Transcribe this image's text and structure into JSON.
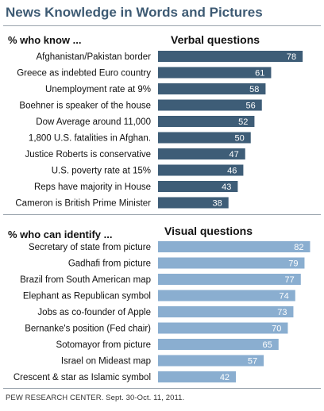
{
  "title": "News Knowledge in Words and Pictures",
  "footer": "PEW RESEARCH CENTER. Sept. 30-Oct. 11, 2011.",
  "colors": {
    "title": "#3d5a73",
    "verbal_bar": "#3e5d77",
    "visual_bar": "#8aaed0",
    "bar_label": "#ffffff"
  },
  "chart_data": [
    {
      "type": "bar",
      "orientation": "horizontal",
      "title": "Verbal questions",
      "category_header": "% who know ...",
      "categories": [
        "Afghanistan/Pakistan border",
        "Greece as indebted Euro country",
        "Unemployment rate at 9%",
        "Boehner is speaker of the house",
        "Dow Average around 11,000",
        "1,800 U.S. fatalities in Afghan.",
        "Justice Roberts is conservative",
        "U.S. poverty rate at 15%",
        "Reps have majority in House",
        "Cameron is British Prime Minister"
      ],
      "values": [
        78,
        61,
        58,
        56,
        52,
        50,
        47,
        46,
        43,
        38
      ],
      "xlim": [
        0,
        100
      ],
      "data_labels": true,
      "grid": false
    },
    {
      "type": "bar",
      "orientation": "horizontal",
      "title": "Visual questions",
      "category_header": "% who can identify ...",
      "categories": [
        "Secretary of state from picture",
        "Gadhafi from picture",
        "Brazil from South American map",
        "Elephant as Republican symbol",
        "Jobs as co-founder of Apple",
        "Bernanke's position (Fed chair)",
        "Sotomayor from picture",
        "Israel on Mideast map",
        "Crescent & star as Islamic symbol"
      ],
      "values": [
        82,
        79,
        77,
        74,
        73,
        70,
        65,
        57,
        42
      ],
      "xlim": [
        0,
        100
      ],
      "data_labels": true,
      "grid": false
    }
  ]
}
